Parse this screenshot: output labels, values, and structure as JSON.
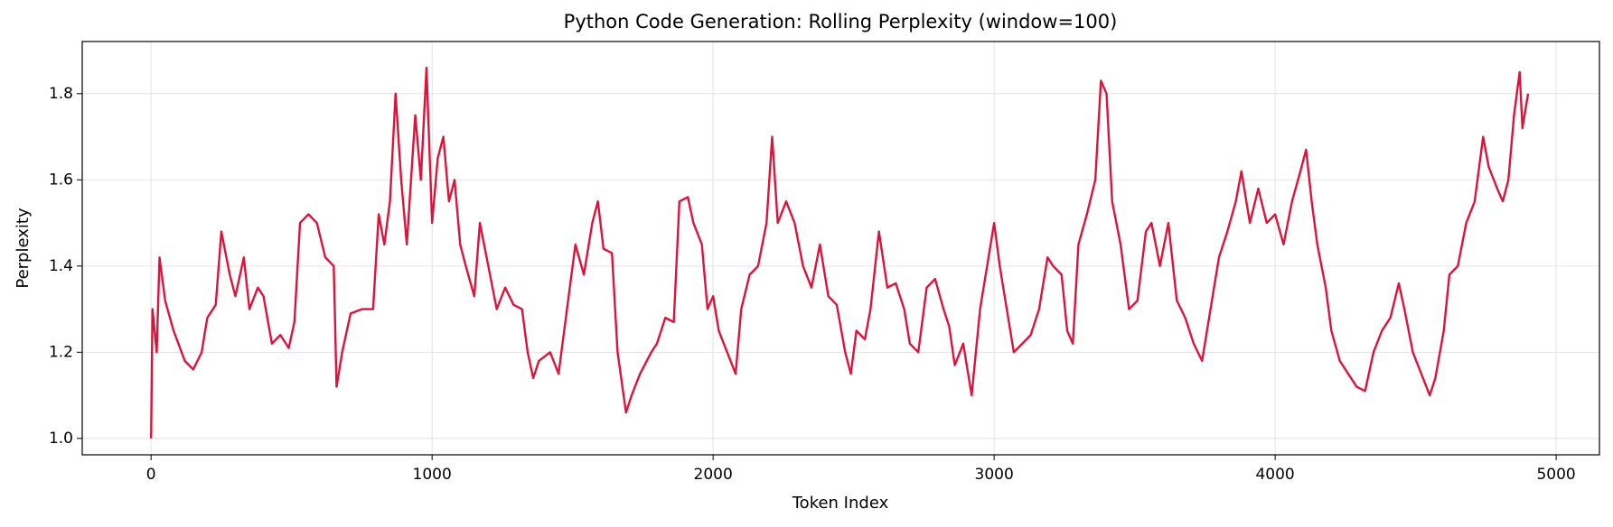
{
  "chart_data": {
    "type": "line",
    "title": "Python Code Generation: Rolling Perplexity (window=100)",
    "x_label": "Token Index",
    "y_label": "Perplexity",
    "x": [
      0,
      5,
      20,
      30,
      50,
      80,
      120,
      150,
      180,
      200,
      230,
      250,
      280,
      300,
      330,
      350,
      380,
      400,
      430,
      460,
      490,
      510,
      530,
      560,
      590,
      620,
      650,
      660,
      680,
      710,
      750,
      790,
      810,
      830,
      850,
      870,
      890,
      910,
      940,
      960,
      980,
      1000,
      1020,
      1040,
      1060,
      1080,
      1100,
      1120,
      1150,
      1170,
      1200,
      1230,
      1260,
      1290,
      1320,
      1340,
      1360,
      1380,
      1420,
      1450,
      1480,
      1510,
      1540,
      1570,
      1590,
      1610,
      1640,
      1660,
      1690,
      1710,
      1740,
      1780,
      1800,
      1830,
      1860,
      1880,
      1910,
      1930,
      1960,
      1980,
      2000,
      2020,
      2050,
      2080,
      2100,
      2130,
      2160,
      2190,
      2210,
      2230,
      2260,
      2290,
      2320,
      2350,
      2380,
      2410,
      2440,
      2470,
      2490,
      2510,
      2540,
      2560,
      2590,
      2620,
      2650,
      2680,
      2700,
      2730,
      2760,
      2790,
      2820,
      2840,
      2860,
      2890,
      2920,
      2950,
      2980,
      3000,
      3020,
      3050,
      3070,
      3100,
      3130,
      3160,
      3190,
      3210,
      3240,
      3260,
      3280,
      3300,
      3330,
      3360,
      3380,
      3400,
      3420,
      3450,
      3480,
      3510,
      3540,
      3560,
      3590,
      3620,
      3650,
      3680,
      3710,
      3740,
      3770,
      3800,
      3830,
      3860,
      3880,
      3910,
      3940,
      3970,
      4000,
      4030,
      4060,
      4090,
      4110,
      4130,
      4150,
      4180,
      4200,
      4230,
      4260,
      4290,
      4320,
      4350,
      4380,
      4410,
      4440,
      4460,
      4490,
      4520,
      4550,
      4570,
      4600,
      4620,
      4650,
      4680,
      4710,
      4740,
      4760,
      4790,
      4810,
      4830,
      4850,
      4870,
      4880,
      4900
    ],
    "series": [
      {
        "name": "Perplexity",
        "color": "#dc143c",
        "values": [
          1.0,
          1.3,
          1.2,
          1.42,
          1.32,
          1.25,
          1.18,
          1.16,
          1.2,
          1.28,
          1.31,
          1.48,
          1.38,
          1.33,
          1.42,
          1.3,
          1.35,
          1.33,
          1.22,
          1.24,
          1.21,
          1.27,
          1.5,
          1.52,
          1.5,
          1.42,
          1.4,
          1.12,
          1.2,
          1.29,
          1.3,
          1.3,
          1.52,
          1.45,
          1.55,
          1.8,
          1.6,
          1.45,
          1.75,
          1.6,
          1.86,
          1.5,
          1.65,
          1.7,
          1.55,
          1.6,
          1.45,
          1.4,
          1.33,
          1.5,
          1.4,
          1.3,
          1.35,
          1.31,
          1.3,
          1.2,
          1.14,
          1.18,
          1.2,
          1.15,
          1.3,
          1.45,
          1.38,
          1.5,
          1.55,
          1.44,
          1.43,
          1.2,
          1.06,
          1.1,
          1.15,
          1.2,
          1.22,
          1.28,
          1.27,
          1.55,
          1.56,
          1.5,
          1.45,
          1.3,
          1.33,
          1.25,
          1.2,
          1.15,
          1.3,
          1.38,
          1.4,
          1.5,
          1.7,
          1.5,
          1.55,
          1.5,
          1.4,
          1.35,
          1.45,
          1.33,
          1.31,
          1.2,
          1.15,
          1.25,
          1.23,
          1.3,
          1.48,
          1.35,
          1.36,
          1.3,
          1.22,
          1.2,
          1.35,
          1.37,
          1.3,
          1.26,
          1.17,
          1.22,
          1.1,
          1.3,
          1.42,
          1.5,
          1.4,
          1.28,
          1.2,
          1.22,
          1.24,
          1.3,
          1.42,
          1.4,
          1.38,
          1.25,
          1.22,
          1.45,
          1.52,
          1.6,
          1.83,
          1.8,
          1.55,
          1.45,
          1.3,
          1.32,
          1.48,
          1.5,
          1.4,
          1.5,
          1.32,
          1.28,
          1.22,
          1.18,
          1.3,
          1.42,
          1.48,
          1.55,
          1.62,
          1.5,
          1.58,
          1.5,
          1.52,
          1.45,
          1.55,
          1.62,
          1.67,
          1.55,
          1.45,
          1.35,
          1.25,
          1.18,
          1.15,
          1.12,
          1.11,
          1.2,
          1.25,
          1.28,
          1.36,
          1.3,
          1.2,
          1.15,
          1.1,
          1.14,
          1.25,
          1.38,
          1.4,
          1.5,
          1.55,
          1.7,
          1.63,
          1.58,
          1.55,
          1.6,
          1.75,
          1.85,
          1.72,
          1.8
        ]
      }
    ],
    "xlim": [
      -245,
      5154
    ],
    "ylim": [
      0.962,
      1.921
    ],
    "xticks": [
      0,
      1000,
      2000,
      3000,
      4000,
      5000
    ],
    "yticks": [
      {
        "value": 1,
        "label": "1.0"
      },
      1.2,
      1.4,
      1.6,
      1.8
    ],
    "grid": true
  }
}
